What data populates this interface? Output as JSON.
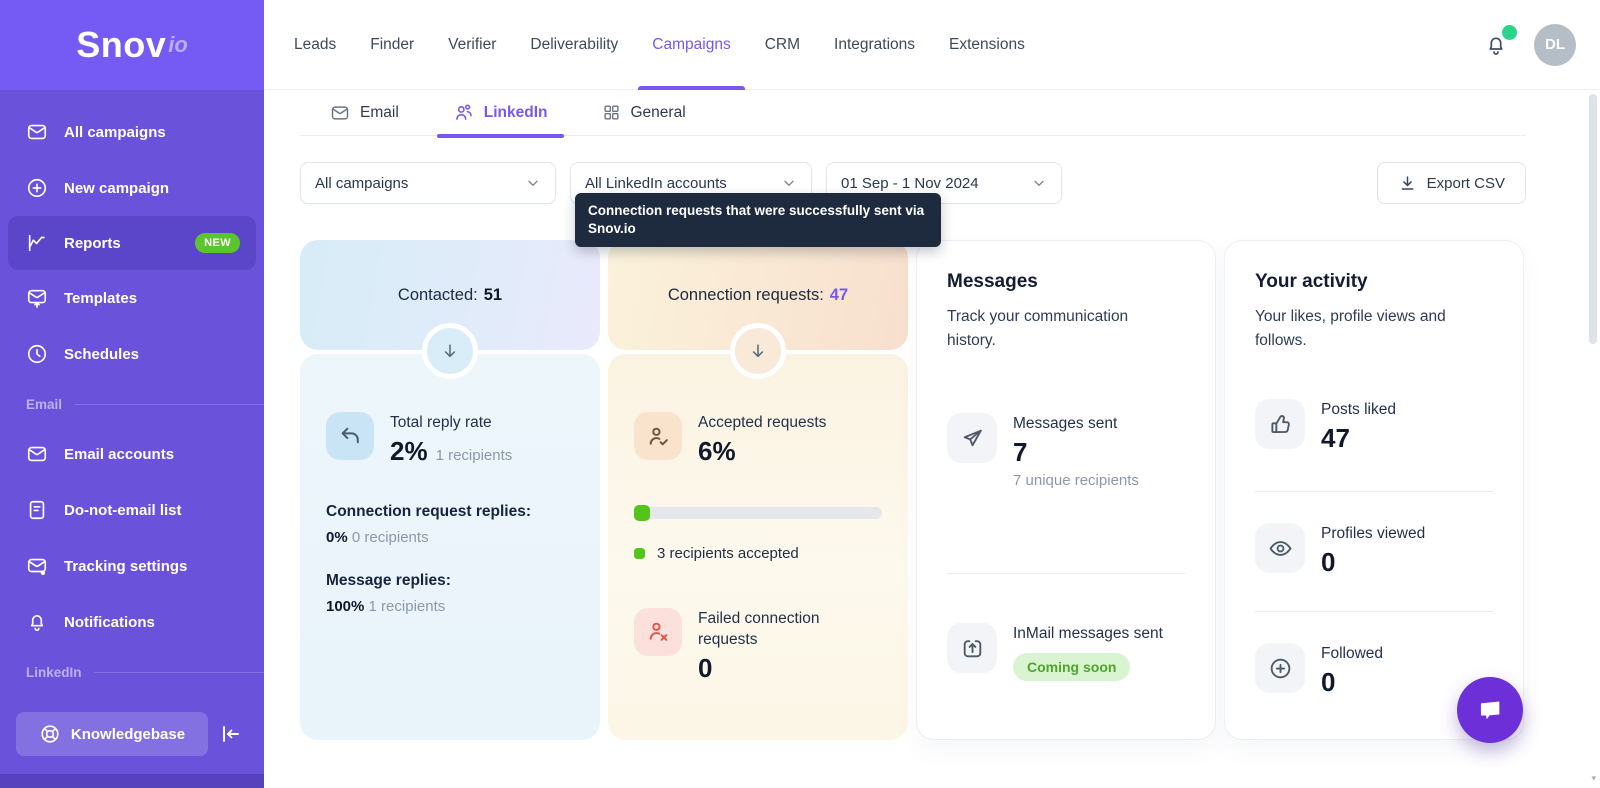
{
  "brand": {
    "name": "Snov",
    "suffix": "io"
  },
  "topnav": {
    "items": [
      "Leads",
      "Finder",
      "Verifier",
      "Deliverability",
      "Campaigns",
      "CRM",
      "Integrations",
      "Extensions"
    ],
    "active": "Campaigns",
    "avatar_initials": "DL"
  },
  "sidebar": {
    "items": [
      {
        "label": "All campaigns"
      },
      {
        "label": "New campaign"
      },
      {
        "label": "Reports",
        "badge": "NEW"
      },
      {
        "label": "Templates"
      },
      {
        "label": "Schedules"
      }
    ],
    "email_section_label": "Email",
    "email_items": [
      {
        "label": "Email accounts"
      },
      {
        "label": "Do-not-email list"
      },
      {
        "label": "Tracking settings"
      },
      {
        "label": "Notifications"
      }
    ],
    "linkedin_section_label": "LinkedIn",
    "knowledgebase_label": "Knowledgebase"
  },
  "tabs": [
    {
      "label": "Email"
    },
    {
      "label": "LinkedIn"
    },
    {
      "label": "General"
    }
  ],
  "filters": {
    "campaigns": "All campaigns",
    "accounts": "All LinkedIn accounts",
    "date_range": "01 Sep - 1 Nov 2024",
    "export_label": "Export CSV"
  },
  "tooltip": {
    "text": "Connection requests that were successfully sent via Snov.io"
  },
  "cards": {
    "contacted": {
      "header_label": "Contacted:",
      "header_value": "51",
      "total_reply": {
        "label": "Total reply rate",
        "value": "2%",
        "sub": "1 recipients"
      },
      "connection_replies": {
        "label": "Connection request replies:",
        "value": "0%",
        "sub": "0 recipients"
      },
      "message_replies": {
        "label": "Message replies:",
        "value": "100%",
        "sub": "1 recipients"
      }
    },
    "requests": {
      "header_label": "Connection requests:",
      "header_value": "47",
      "accepted": {
        "label": "Accepted requests",
        "value": "6%"
      },
      "progress": {
        "percent": 6,
        "note": "3 recipients accepted"
      },
      "failed": {
        "label": "Failed connection requests",
        "value": "0"
      }
    },
    "messages": {
      "title": "Messages",
      "subtitle": "Track your communication history.",
      "sent": {
        "label": "Messages sent",
        "value": "7",
        "sub": "7 unique recipients"
      },
      "inmail": {
        "label": "InMail messages sent",
        "badge": "Coming soon"
      }
    },
    "activity": {
      "title": "Your activity",
      "subtitle": "Your likes, profile views and follows.",
      "posts_liked": {
        "label": "Posts liked",
        "value": "47"
      },
      "profiles_viewed": {
        "label": "Profiles viewed",
        "value": "0"
      },
      "followed": {
        "label": "Followed",
        "value": "0"
      }
    }
  },
  "colors": {
    "accent": "#7857F0",
    "sidebar": "#6A52DB",
    "sidebar_header": "#755BF3",
    "active_item_bg": "#5B46C9",
    "new_badge": "#5CC52E",
    "success_green": "#52C41A",
    "coming_soon_bg": "#D9F4D0",
    "coming_soon_text": "#4FA32F",
    "tooltip_bg": "#1E2B3F",
    "online_dot": "#2BD38B",
    "failed_red": "#E0564A",
    "chat_fab": "#6D2FD8"
  }
}
